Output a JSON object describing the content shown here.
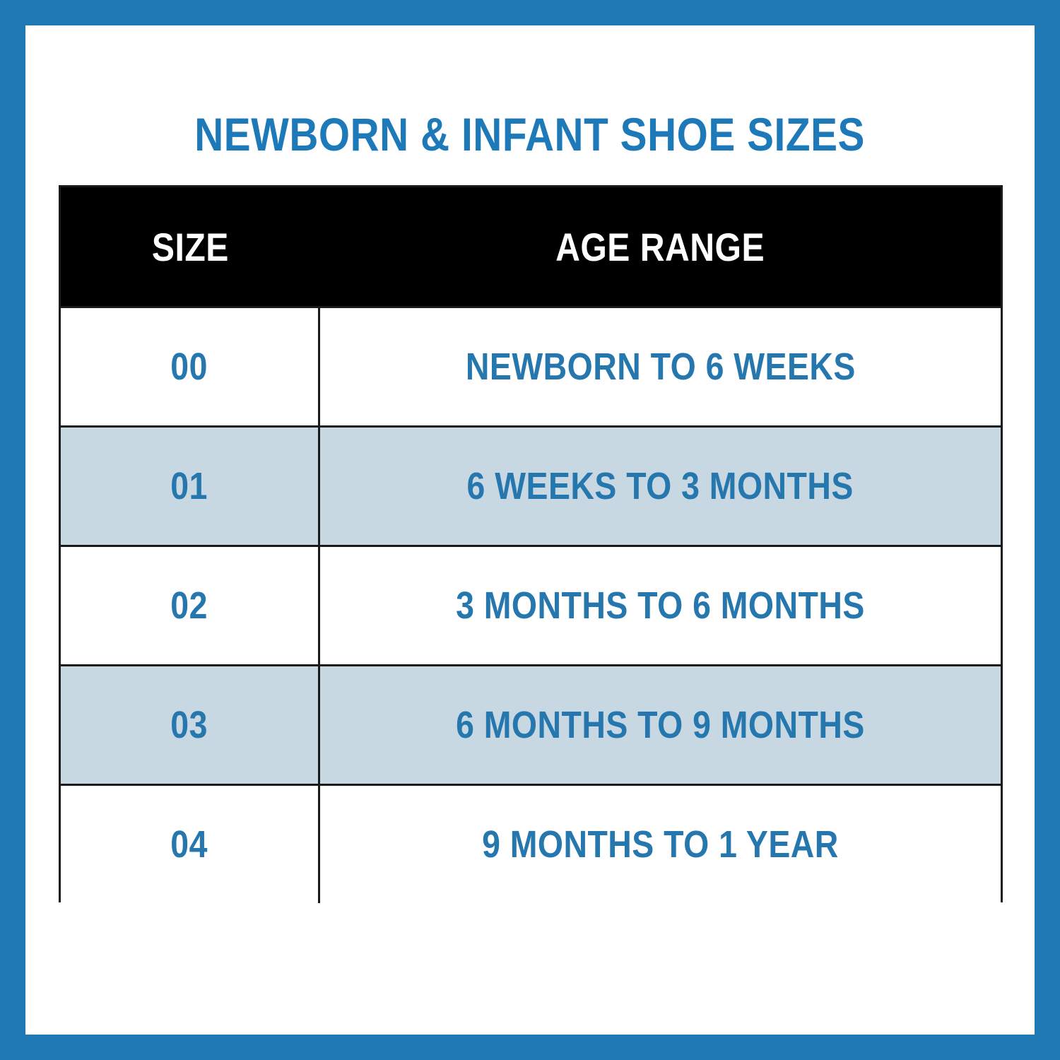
{
  "title": "NEWBORN & INFANT SHOE SIZES",
  "colors": {
    "frame_blue": "#1e79b4",
    "title_blue": "#1d79b8",
    "cell_text_blue": "#2577ad",
    "row_alt_blue": "#c8d8e3",
    "header_bg": "#000000",
    "header_text": "#ffffff",
    "grid_line": "#1a1a1a"
  },
  "table": {
    "headers": [
      "SIZE",
      "AGE RANGE"
    ],
    "rows": [
      {
        "size": "00",
        "age_range": "NEWBORN TO 6 WEEKS"
      },
      {
        "size": "01",
        "age_range": "6 WEEKS TO 3 MONTHS"
      },
      {
        "size": "02",
        "age_range": "3 MONTHS TO 6 MONTHS"
      },
      {
        "size": "03",
        "age_range": "6 MONTHS TO 9 MONTHS"
      },
      {
        "size": "04",
        "age_range": "9 MONTHS TO 1 YEAR"
      }
    ]
  },
  "chart_data": {
    "type": "table",
    "title": "NEWBORN & INFANT SHOE SIZES",
    "columns": [
      "SIZE",
      "AGE RANGE"
    ],
    "rows": [
      [
        "00",
        "NEWBORN TO 6 WEEKS"
      ],
      [
        "01",
        "6 WEEKS TO 3 MONTHS"
      ],
      [
        "02",
        "3 MONTHS TO 6 MONTHS"
      ],
      [
        "03",
        "6 MONTHS TO 9 MONTHS"
      ],
      [
        "04",
        "9 MONTHS TO 1 YEAR"
      ]
    ],
    "layout_hints": {
      "header_style": "black bar, white bold text",
      "alternating_row_color_rows": [
        1,
        3
      ],
      "text_alignment": "center"
    }
  }
}
